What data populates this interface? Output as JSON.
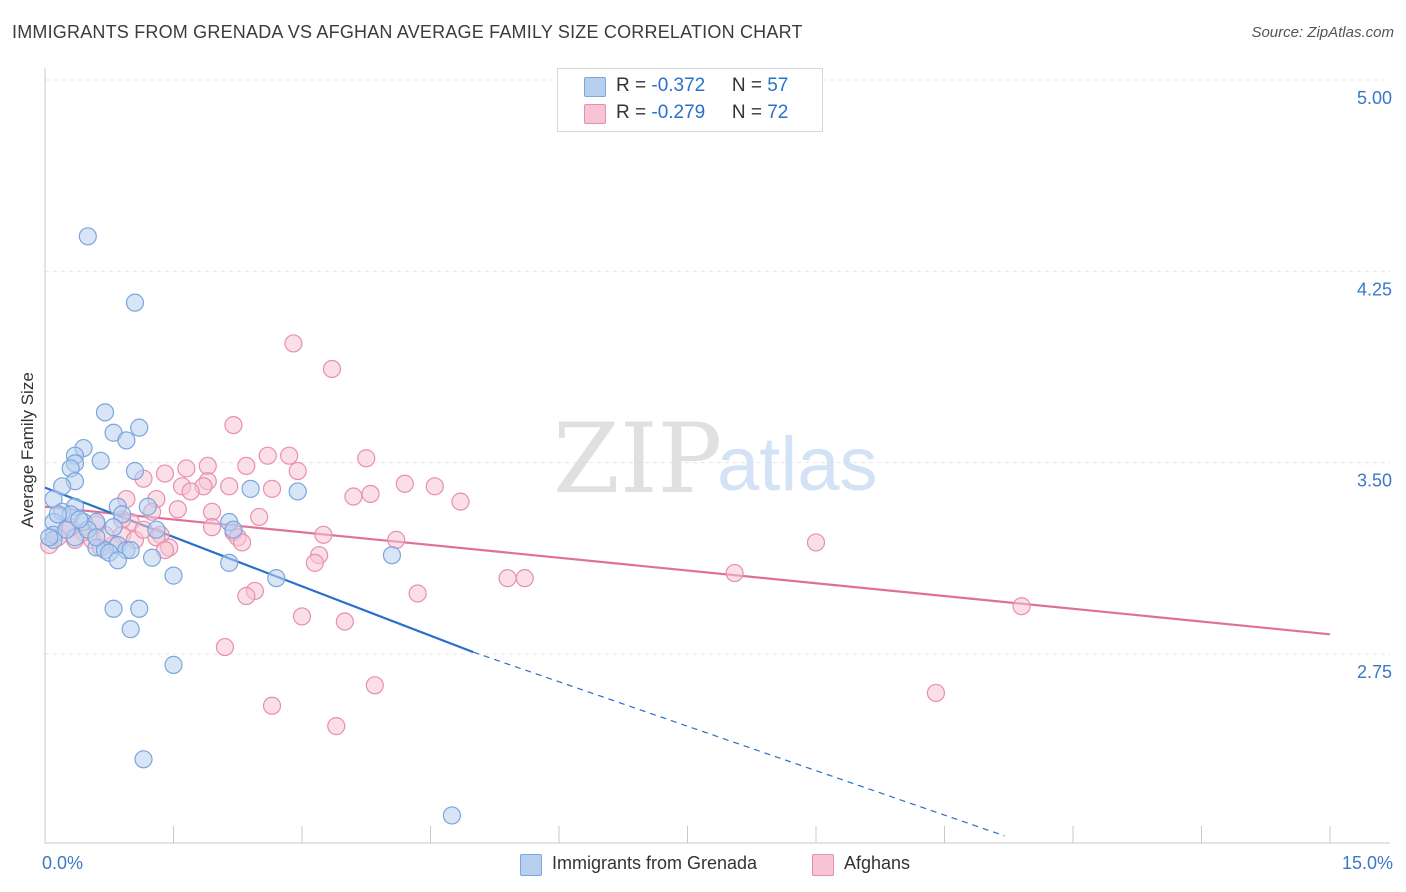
{
  "title": "IMMIGRANTS FROM GRENADA VS AFGHAN AVERAGE FAMILY SIZE CORRELATION CHART",
  "source": "Source: ZipAtlas.com",
  "watermark": {
    "part1": "ZIP",
    "part2": "atlas"
  },
  "legend": {
    "rows": [
      {
        "r_label": "R = ",
        "r_value": "-0.372",
        "n_label": "N = ",
        "n_value": "57"
      },
      {
        "r_label": "R = ",
        "r_value": "-0.279",
        "n_label": "N = ",
        "n_value": "72"
      }
    ]
  },
  "colors": {
    "blue_fill": "#b8d0f0",
    "blue_stroke": "#7aa6dc",
    "blue_line": "#2a6fc9",
    "pink_fill": "#f6c4d4",
    "pink_stroke": "#e88fae",
    "pink_line": "#e0709a",
    "tick_label": "#3b78c8",
    "grid": "#e6e6e6"
  },
  "chart_data": {
    "type": "scatter",
    "title": "IMMIGRANTS FROM GRENADA VS AFGHAN AVERAGE FAMILY SIZE CORRELATION CHART",
    "xlabel": "",
    "ylabel": "Average Family Size",
    "xlim": [
      0,
      15
    ],
    "ylim": [
      2.15,
      5.1
    ],
    "x_tick_labels": [
      "0.0%",
      "15.0%"
    ],
    "y_ticks": [
      2.75,
      3.5,
      4.25,
      5.0
    ],
    "y_tick_labels": [
      "2.75",
      "3.50",
      "4.25",
      "5.00"
    ],
    "grid": true,
    "legend_position": "top-center",
    "series": [
      {
        "name": "Immigrants from Grenada",
        "color": "#7aa6dc",
        "points": [
          [
            0.5,
            4.45
          ],
          [
            1.05,
            4.19
          ],
          [
            0.7,
            3.76
          ],
          [
            1.1,
            3.7
          ],
          [
            0.8,
            3.68
          ],
          [
            0.95,
            3.65
          ],
          [
            0.45,
            3.62
          ],
          [
            0.35,
            3.59
          ],
          [
            0.35,
            3.56
          ],
          [
            0.65,
            3.57
          ],
          [
            0.3,
            3.54
          ],
          [
            1.05,
            3.53
          ],
          [
            0.35,
            3.49
          ],
          [
            0.2,
            3.47
          ],
          [
            2.4,
            3.46
          ],
          [
            2.95,
            3.45
          ],
          [
            0.1,
            3.42
          ],
          [
            0.35,
            3.39
          ],
          [
            1.2,
            3.39
          ],
          [
            0.85,
            3.39
          ],
          [
            0.2,
            3.37
          ],
          [
            0.3,
            3.36
          ],
          [
            0.9,
            3.36
          ],
          [
            0.1,
            3.33
          ],
          [
            0.45,
            3.33
          ],
          [
            2.15,
            3.33
          ],
          [
            0.6,
            3.33
          ],
          [
            0.8,
            3.31
          ],
          [
            1.3,
            3.3
          ],
          [
            2.2,
            3.3
          ],
          [
            0.1,
            3.28
          ],
          [
            0.35,
            3.27
          ],
          [
            0.1,
            3.26
          ],
          [
            0.85,
            3.24
          ],
          [
            0.6,
            3.23
          ],
          [
            0.7,
            3.22
          ],
          [
            0.95,
            3.22
          ],
          [
            1.0,
            3.22
          ],
          [
            0.75,
            3.21
          ],
          [
            4.05,
            3.2
          ],
          [
            1.25,
            3.19
          ],
          [
            0.85,
            3.18
          ],
          [
            2.15,
            3.17
          ],
          [
            1.5,
            3.12
          ],
          [
            2.7,
            3.11
          ],
          [
            0.8,
            2.99
          ],
          [
            1.1,
            2.99
          ],
          [
            1.0,
            2.91
          ],
          [
            1.5,
            2.77
          ],
          [
            1.15,
            2.4
          ],
          [
            4.75,
            2.18
          ],
          [
            0.25,
            3.3
          ],
          [
            0.5,
            3.3
          ],
          [
            0.05,
            3.27
          ],
          [
            0.6,
            3.27
          ],
          [
            0.15,
            3.36
          ],
          [
            0.4,
            3.34
          ]
        ]
      },
      {
        "name": "Afghans",
        "color": "#e88fae",
        "points": [
          [
            2.9,
            4.03
          ],
          [
            3.35,
            3.93
          ],
          [
            2.2,
            3.71
          ],
          [
            2.6,
            3.59
          ],
          [
            2.85,
            3.59
          ],
          [
            3.75,
            3.58
          ],
          [
            1.9,
            3.55
          ],
          [
            2.35,
            3.55
          ],
          [
            1.65,
            3.54
          ],
          [
            2.95,
            3.53
          ],
          [
            1.4,
            3.52
          ],
          [
            1.15,
            3.5
          ],
          [
            1.9,
            3.49
          ],
          [
            4.2,
            3.48
          ],
          [
            4.55,
            3.47
          ],
          [
            1.6,
            3.47
          ],
          [
            1.85,
            3.47
          ],
          [
            2.15,
            3.47
          ],
          [
            2.65,
            3.46
          ],
          [
            1.7,
            3.45
          ],
          [
            3.8,
            3.44
          ],
          [
            3.6,
            3.43
          ],
          [
            1.3,
            3.42
          ],
          [
            0.95,
            3.42
          ],
          [
            4.85,
            3.41
          ],
          [
            1.55,
            3.38
          ],
          [
            1.25,
            3.37
          ],
          [
            1.95,
            3.37
          ],
          [
            2.5,
            3.35
          ],
          [
            1.0,
            3.33
          ],
          [
            1.95,
            3.31
          ],
          [
            2.2,
            3.29
          ],
          [
            1.35,
            3.28
          ],
          [
            0.9,
            3.28
          ],
          [
            3.25,
            3.28
          ],
          [
            2.25,
            3.27
          ],
          [
            1.3,
            3.27
          ],
          [
            0.55,
            3.26
          ],
          [
            4.1,
            3.26
          ],
          [
            1.05,
            3.26
          ],
          [
            2.3,
            3.25
          ],
          [
            9.0,
            3.25
          ],
          [
            0.8,
            3.24
          ],
          [
            0.65,
            3.23
          ],
          [
            1.45,
            3.23
          ],
          [
            1.4,
            3.22
          ],
          [
            3.2,
            3.2
          ],
          [
            3.15,
            3.17
          ],
          [
            8.05,
            3.13
          ],
          [
            5.6,
            3.11
          ],
          [
            5.4,
            3.11
          ],
          [
            2.45,
            3.06
          ],
          [
            4.35,
            3.05
          ],
          [
            2.35,
            3.04
          ],
          [
            11.4,
            3.0
          ],
          [
            3.0,
            2.96
          ],
          [
            3.5,
            2.94
          ],
          [
            2.1,
            2.84
          ],
          [
            3.85,
            2.69
          ],
          [
            10.4,
            2.66
          ],
          [
            2.65,
            2.61
          ],
          [
            3.4,
            2.53
          ],
          [
            0.05,
            3.24
          ],
          [
            0.25,
            3.3
          ],
          [
            0.45,
            3.29
          ],
          [
            0.15,
            3.27
          ],
          [
            0.7,
            3.28
          ],
          [
            0.35,
            3.26
          ],
          [
            0.6,
            3.32
          ],
          [
            0.9,
            3.34
          ],
          [
            1.15,
            3.3
          ],
          [
            0.3,
            3.31
          ]
        ]
      }
    ],
    "trend_lines": [
      {
        "series": "Immigrants from Grenada",
        "solid": {
          "x0": 0,
          "y0": 3.465,
          "x1": 5.0,
          "y1": 2.82
        },
        "dashed": {
          "x0": 5.0,
          "y0": 2.82,
          "x1": 11.2,
          "y1": 2.1
        }
      },
      {
        "series": "Afghans",
        "solid": {
          "x0": 0,
          "y0": 3.39,
          "x1": 15,
          "y1": 2.89
        }
      }
    ]
  },
  "bottom_legend": {
    "items": [
      {
        "label": "Immigrants from Grenada"
      },
      {
        "label": "Afghans"
      }
    ]
  }
}
